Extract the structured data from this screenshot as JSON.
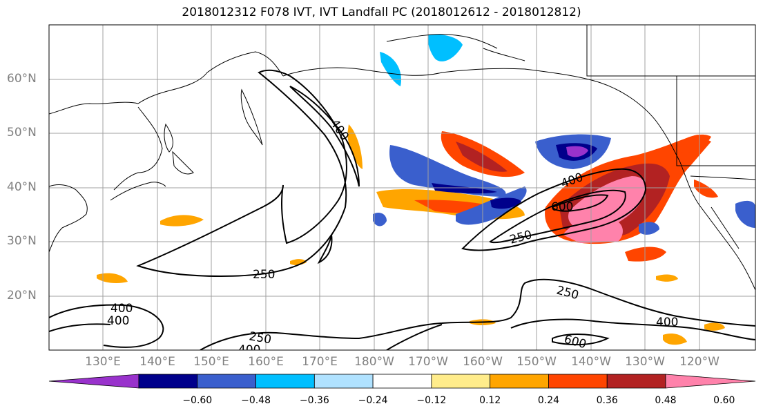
{
  "title": "2018012312 F078 IVT, IVT Landfall PC (2018012612 - 2018012812)",
  "lat_labels": [
    "60°N",
    "50°N",
    "40°N",
    "30°N",
    "20°N"
  ],
  "lon_labels": [
    "130°E",
    "140°E",
    "150°E",
    "160°E",
    "170°E",
    "180°W",
    "170°W",
    "160°W",
    "150°W",
    "140°W",
    "130°W",
    "120°W"
  ],
  "colorbar": {
    "ticks": [
      "−0.60",
      "−0.48",
      "−0.36",
      "−0.24",
      "−0.12",
      "0.12",
      "0.24",
      "0.36",
      "0.48",
      "0.60"
    ],
    "colors": [
      "#9932cc",
      "#00008b",
      "#3a5fcd",
      "#00bfff",
      "#b0e2ff",
      "#ffffff",
      "#ffec8b",
      "#ffa500",
      "#ff4500",
      "#b22222",
      "#ff82ab"
    ],
    "extend": "both"
  },
  "contour_labels": [
    "400",
    "600",
    "250",
    "250",
    "250",
    "400",
    "400",
    "400",
    "400",
    "250",
    "600",
    "400"
  ]
}
